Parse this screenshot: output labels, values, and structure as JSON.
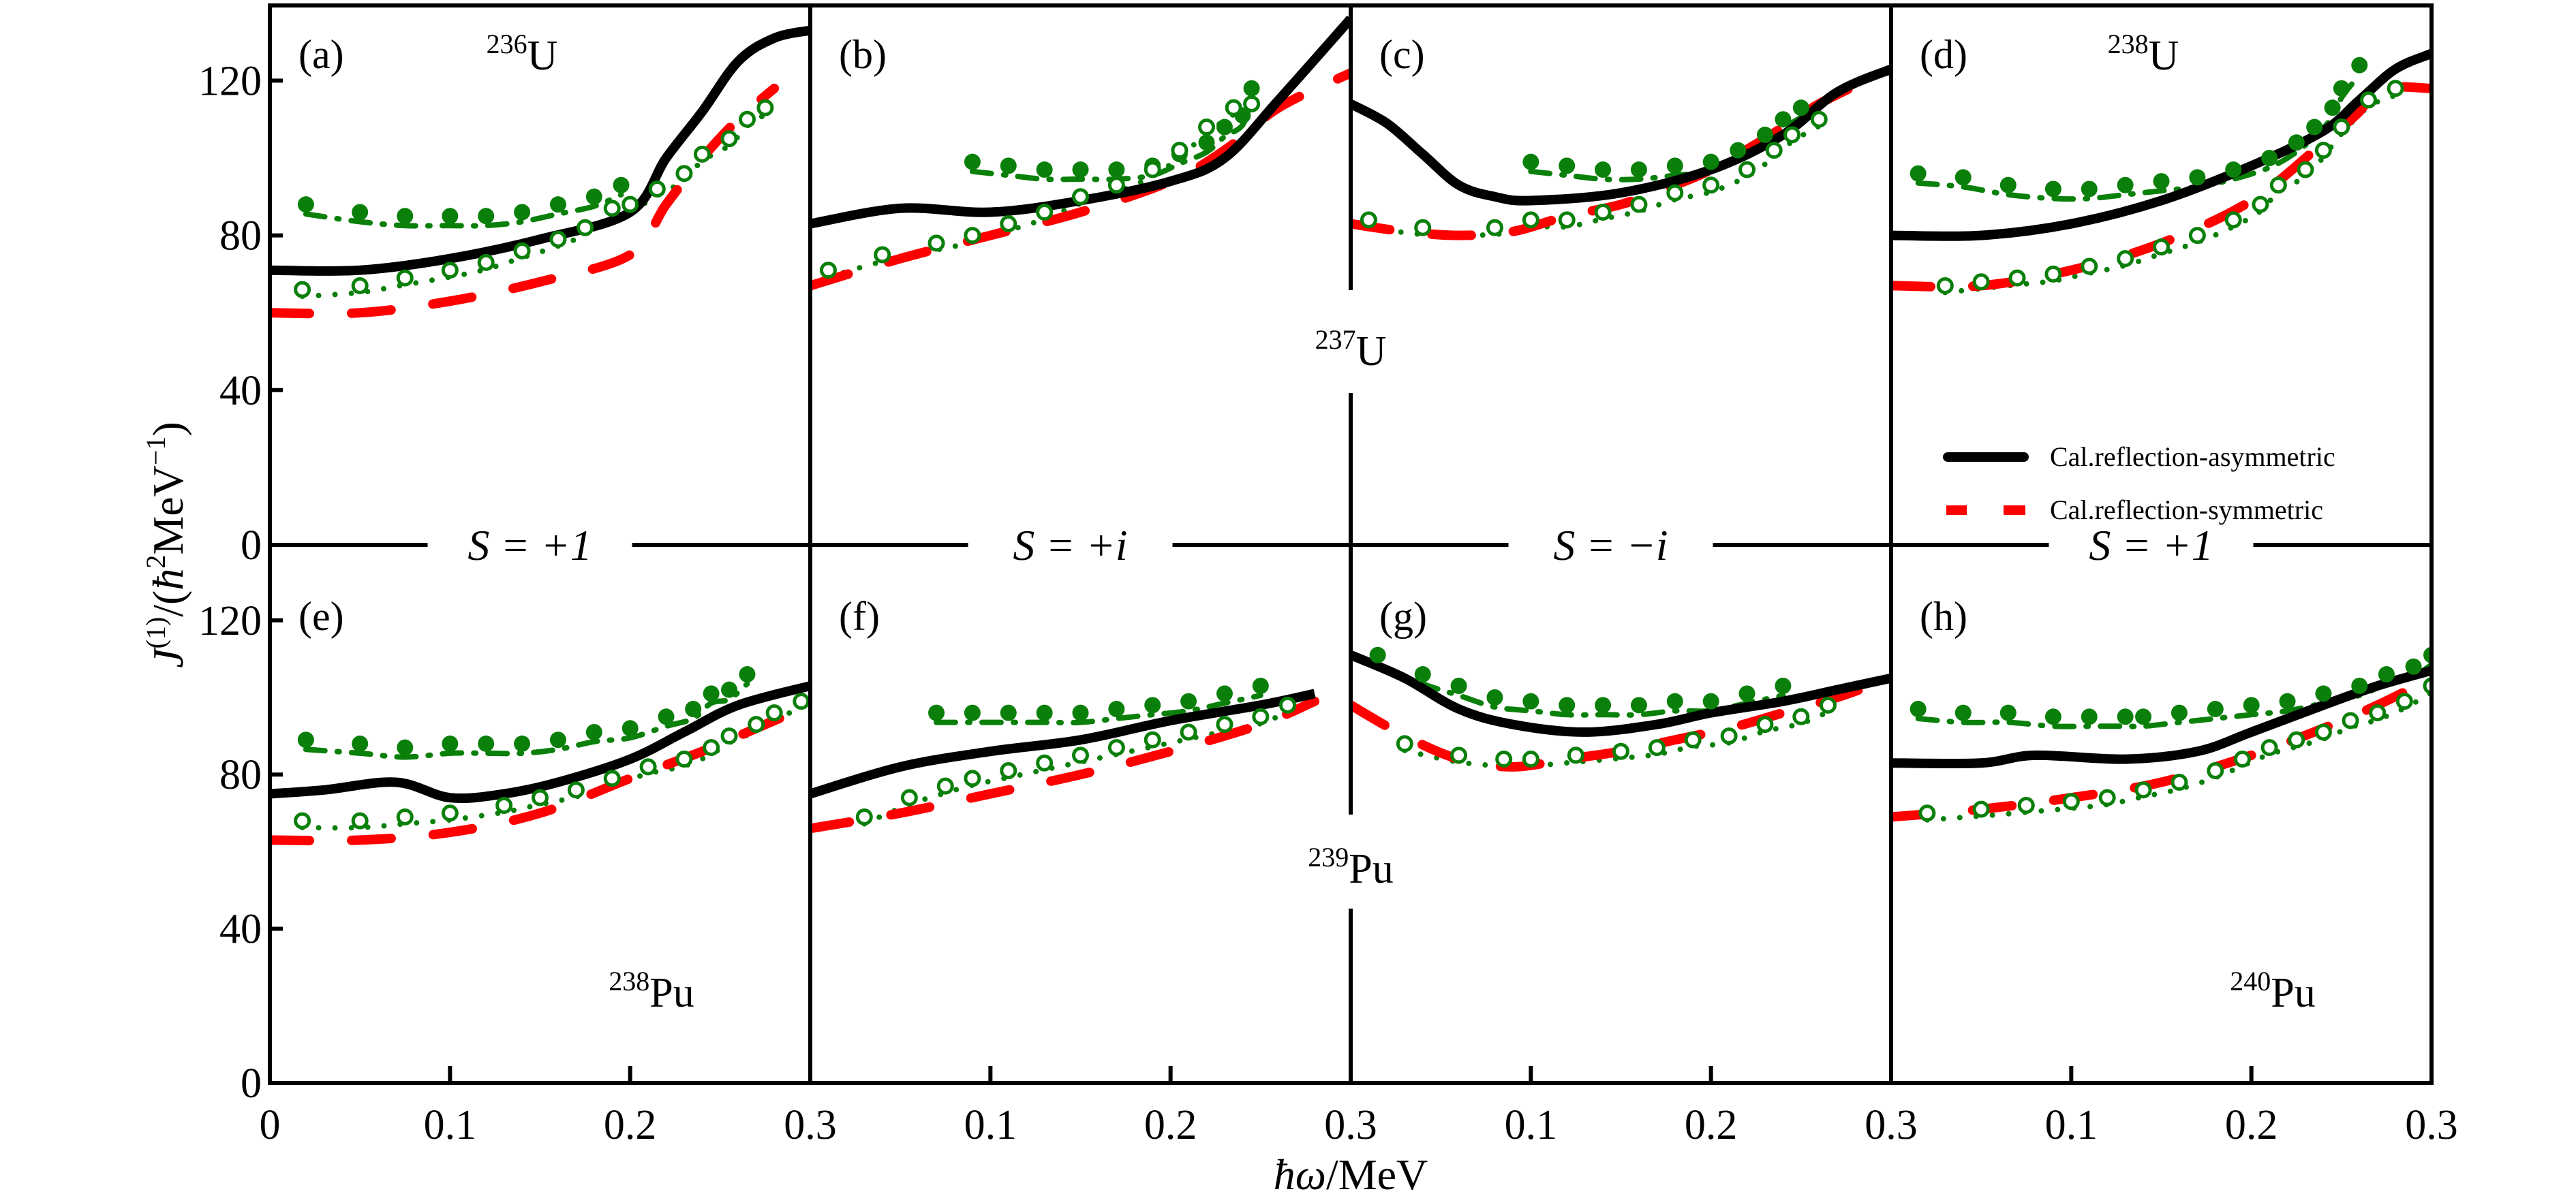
{
  "colors": {
    "asymmetric": "#000000",
    "symmetric": "#ff0000",
    "experiment": "#0a800a",
    "axis": "#000000"
  },
  "axes": {
    "xlabel": {
      "hbar_omega": "ħω",
      "unit": "/MeV"
    },
    "ylabel": {
      "J": "J",
      "order": "(1)",
      "open": "/(",
      "hbar": "ħ",
      "sq": "2",
      "unit": "MeV",
      "inv": "−1",
      "close": ")"
    },
    "y_tick_labels_top": [
      "0",
      "40",
      "80",
      "120"
    ],
    "y_tick_labels_bottom": [
      "0",
      "40",
      "80",
      "120"
    ],
    "x_tick_label_origin": "0",
    "x_tick_labels_panel": [
      "0.1",
      "0.2",
      "0.3"
    ]
  },
  "legend": {
    "placement": "right-middle of panel (d)",
    "items": [
      {
        "label": "Cal.reflection-asymmetric",
        "style": "solid-black"
      },
      {
        "label": "Cal.reflection-symmetric",
        "style": "dashed-red"
      }
    ]
  },
  "signatures": [
    "S = +1",
    "S = +i",
    "S = −i",
    "S = +1"
  ],
  "shared_nuclides": {
    "top": {
      "mass": "237",
      "symbol": "U"
    },
    "bottom": {
      "mass": "239",
      "symbol": "Pu"
    }
  },
  "chart_data": [
    {
      "type": "line",
      "panel": "(a)",
      "nuclide": {
        "mass": "236",
        "symbol": "U"
      },
      "xlim": [
        0,
        0.3
      ],
      "ylim": [
        0,
        140
      ],
      "yticks": [
        0,
        40,
        80,
        120
      ],
      "xticks": [
        0,
        0.1,
        0.2,
        0.3
      ],
      "xlabel": "ħω/MeV",
      "ylabel": "J(1)/(ħ2MeV−1)",
      "asymmetric": {
        "x": [
          0,
          0.05,
          0.1,
          0.15,
          0.2,
          0.22,
          0.24,
          0.26,
          0.28,
          0.3
        ],
        "y": [
          71,
          71,
          74,
          79,
          86,
          100,
          112,
          125,
          131,
          133
        ]
      },
      "symmetric": {
        "x": [
          0,
          0.05,
          0.1,
          0.15,
          0.2,
          0.22,
          0.24,
          0.26,
          0.28
        ],
        "y": [
          60,
          60,
          63,
          68,
          75,
          88,
          100,
          110,
          118
        ]
      },
      "exp_filled": {
        "x": [
          0.02,
          0.05,
          0.075,
          0.1,
          0.12,
          0.14,
          0.16,
          0.18,
          0.195
        ],
        "y": [
          88,
          86,
          85,
          85,
          85,
          86,
          88,
          90,
          93
        ]
      },
      "exp_open": {
        "x": [
          0.018,
          0.05,
          0.075,
          0.1,
          0.12,
          0.14,
          0.16,
          0.175,
          0.19,
          0.2,
          0.215,
          0.23,
          0.24,
          0.255,
          0.265,
          0.275
        ],
        "y": [
          66,
          67,
          69,
          71,
          73,
          76,
          79,
          82,
          87,
          88,
          92,
          96,
          101,
          105,
          110,
          113
        ]
      }
    },
    {
      "type": "line",
      "panel": "(b)",
      "nuclide": null,
      "xlim": [
        0,
        0.3
      ],
      "ylim": [
        0,
        140
      ],
      "asymmetric": {
        "x": [
          0,
          0.05,
          0.1,
          0.15,
          0.2,
          0.23,
          0.26,
          0.3
        ],
        "y": [
          83,
          87,
          86,
          89,
          94,
          100,
          115,
          136
        ]
      },
      "symmetric": {
        "x": [
          0,
          0.05,
          0.1,
          0.15,
          0.2,
          0.23,
          0.26,
          0.3
        ],
        "y": [
          67,
          74,
          80,
          86,
          94,
          102,
          113,
          122
        ]
      },
      "exp_filled": {
        "x": [
          0.09,
          0.11,
          0.13,
          0.15,
          0.17,
          0.19,
          0.205,
          0.22,
          0.23,
          0.24,
          0.245
        ],
        "y": [
          99,
          98,
          97,
          97,
          97,
          98,
          101,
          104,
          108,
          111,
          118
        ]
      },
      "exp_open": {
        "x": [
          0.01,
          0.04,
          0.07,
          0.09,
          0.11,
          0.13,
          0.15,
          0.17,
          0.19,
          0.205,
          0.22,
          0.235,
          0.245
        ],
        "y": [
          71,
          75,
          78,
          80,
          83,
          86,
          90,
          93,
          97,
          102,
          108,
          113,
          114
        ]
      }
    },
    {
      "type": "line",
      "panel": "(c)",
      "nuclide": null,
      "xlim": [
        0,
        0.3
      ],
      "ylim": [
        0,
        140
      ],
      "asymmetric": {
        "x": [
          0,
          0.02,
          0.04,
          0.06,
          0.08,
          0.1,
          0.15,
          0.2,
          0.24,
          0.27,
          0.3
        ],
        "y": [
          114,
          109,
          101,
          93,
          90,
          89,
          91,
          97,
          106,
          117,
          123
        ]
      },
      "symmetric": {
        "x": [
          0,
          0.03,
          0.06,
          0.09,
          0.12,
          0.15,
          0.18,
          0.2,
          0.23,
          0.26,
          0.3
        ],
        "y": [
          83,
          81,
          80,
          81,
          85,
          88,
          93,
          97,
          105,
          114,
          123
        ]
      },
      "exp_filled": {
        "x": [
          0.1,
          0.12,
          0.14,
          0.16,
          0.18,
          0.2,
          0.215,
          0.23,
          0.24,
          0.25
        ],
        "y": [
          99,
          98,
          97,
          97,
          98,
          99,
          102,
          106,
          110,
          113
        ]
      },
      "exp_open": {
        "x": [
          0.01,
          0.04,
          0.08,
          0.1,
          0.12,
          0.14,
          0.16,
          0.18,
          0.2,
          0.22,
          0.235,
          0.245,
          0.26
        ],
        "y": [
          84,
          82,
          82,
          84,
          84,
          86,
          88,
          91,
          93,
          97,
          102,
          106,
          110
        ]
      }
    },
    {
      "type": "line",
      "panel": "(d)",
      "nuclide": {
        "mass": "238",
        "symbol": "U"
      },
      "xlim": [
        0,
        0.3
      ],
      "ylim": [
        0,
        140
      ],
      "asymmetric": {
        "x": [
          0,
          0.05,
          0.1,
          0.15,
          0.2,
          0.24,
          0.26,
          0.28,
          0.3
        ],
        "y": [
          80,
          80,
          83,
          89,
          98,
          107,
          115,
          123,
          127
        ]
      },
      "symmetric": {
        "x": [
          0,
          0.05,
          0.1,
          0.15,
          0.2,
          0.24,
          0.26,
          0.27,
          0.3
        ],
        "y": [
          67,
          67,
          71,
          78,
          89,
          104,
          112,
          118,
          118
        ]
      },
      "exp_filled": {
        "x": [
          0.015,
          0.04,
          0.065,
          0.09,
          0.11,
          0.13,
          0.15,
          0.17,
          0.19,
          0.21,
          0.225,
          0.235,
          0.245,
          0.25,
          0.26
        ],
        "y": [
          96,
          95,
          93,
          92,
          92,
          93,
          94,
          95,
          97,
          100,
          104,
          108,
          113,
          118,
          124
        ]
      },
      "exp_open": {
        "x": [
          0.03,
          0.05,
          0.07,
          0.09,
          0.11,
          0.13,
          0.15,
          0.17,
          0.19,
          0.205,
          0.215,
          0.23,
          0.24,
          0.25,
          0.265,
          0.28
        ],
        "y": [
          67,
          68,
          69,
          70,
          72,
          74,
          77,
          80,
          84,
          88,
          93,
          97,
          102,
          108,
          115,
          118
        ]
      }
    },
    {
      "type": "line",
      "panel": "(e)",
      "nuclide": {
        "mass": "238",
        "symbol": "Pu"
      },
      "xlim": [
        0,
        0.3
      ],
      "ylim": [
        0,
        140
      ],
      "asymmetric": {
        "x": [
          0,
          0.03,
          0.07,
          0.1,
          0.13,
          0.16,
          0.2,
          0.23,
          0.26,
          0.3
        ],
        "y": [
          75,
          76,
          78,
          74,
          75,
          78,
          84,
          91,
          98,
          103
        ]
      },
      "symmetric": {
        "x": [
          0,
          0.05,
          0.1,
          0.15,
          0.2,
          0.24,
          0.27,
          0.3
        ],
        "y": [
          63,
          63,
          65,
          70,
          79,
          86,
          92,
          98
        ]
      },
      "exp_filled": {
        "x": [
          0.02,
          0.05,
          0.075,
          0.1,
          0.12,
          0.14,
          0.16,
          0.18,
          0.2,
          0.22,
          0.235,
          0.245,
          0.255,
          0.265
        ],
        "y": [
          89,
          88,
          87,
          88,
          88,
          88,
          89,
          91,
          92,
          95,
          97,
          101,
          102,
          106
        ]
      },
      "exp_open": {
        "x": [
          0.018,
          0.05,
          0.075,
          0.1,
          0.13,
          0.15,
          0.17,
          0.19,
          0.21,
          0.23,
          0.245,
          0.255,
          0.27,
          0.28,
          0.295
        ],
        "y": [
          68,
          68,
          69,
          70,
          72,
          74,
          76,
          79,
          82,
          84,
          87,
          90,
          93,
          96,
          99
        ]
      }
    },
    {
      "type": "line",
      "panel": "(f)",
      "nuclide": null,
      "xlim": [
        0,
        0.3
      ],
      "ylim": [
        0,
        140
      ],
      "asymmetric": {
        "x": [
          0,
          0.05,
          0.1,
          0.15,
          0.2,
          0.25,
          0.28
        ],
        "y": [
          75,
          82,
          86,
          89,
          94,
          98,
          101
        ]
      },
      "symmetric": {
        "x": [
          0,
          0.05,
          0.1,
          0.15,
          0.2,
          0.25,
          0.28
        ],
        "y": [
          66,
          70,
          75,
          80,
          86,
          93,
          99
        ]
      },
      "exp_filled": {
        "x": [
          0.07,
          0.09,
          0.11,
          0.13,
          0.15,
          0.17,
          0.19,
          0.21,
          0.23,
          0.25
        ],
        "y": [
          96,
          96,
          96,
          96,
          96,
          97,
          98,
          99,
          101,
          103
        ]
      },
      "exp_open": {
        "x": [
          0.03,
          0.055,
          0.075,
          0.09,
          0.11,
          0.13,
          0.15,
          0.17,
          0.19,
          0.21,
          0.23,
          0.25,
          0.265
        ],
        "y": [
          69,
          74,
          77,
          79,
          81,
          83,
          85,
          87,
          89,
          91,
          93,
          95,
          98
        ]
      }
    },
    {
      "type": "line",
      "panel": "(g)",
      "nuclide": null,
      "xlim": [
        0,
        0.3
      ],
      "ylim": [
        0,
        140
      ],
      "asymmetric": {
        "x": [
          0,
          0.03,
          0.06,
          0.09,
          0.13,
          0.17,
          0.2,
          0.24,
          0.27,
          0.3
        ],
        "y": [
          111,
          105,
          97,
          93,
          91,
          93,
          96,
          99,
          102,
          105
        ]
      },
      "symmetric": {
        "x": [
          0,
          0.03,
          0.06,
          0.09,
          0.12,
          0.15,
          0.18,
          0.21,
          0.24,
          0.27,
          0.3
        ],
        "y": [
          98,
          90,
          84,
          82,
          84,
          86,
          89,
          92,
          96,
          100,
          105
        ]
      },
      "exp_filled": {
        "x": [
          0.015,
          0.04,
          0.06,
          0.08,
          0.1,
          0.12,
          0.14,
          0.16,
          0.18,
          0.2,
          0.22,
          0.24
        ],
        "y": [
          111,
          106,
          103,
          100,
          99,
          98,
          98,
          98,
          99,
          99,
          101,
          103
        ]
      },
      "exp_open": {
        "x": [
          0.03,
          0.06,
          0.085,
          0.1,
          0.125,
          0.15,
          0.17,
          0.19,
          0.21,
          0.23,
          0.25,
          0.265
        ],
        "y": [
          88,
          85,
          84,
          84,
          85,
          86,
          87,
          89,
          90,
          93,
          95,
          98
        ]
      }
    },
    {
      "type": "line",
      "panel": "(h)",
      "nuclide": {
        "mass": "240",
        "symbol": "Pu"
      },
      "xlim": [
        0,
        0.3
      ],
      "ylim": [
        0,
        140
      ],
      "asymmetric": {
        "x": [
          0,
          0.05,
          0.08,
          0.13,
          0.17,
          0.2,
          0.24,
          0.27,
          0.3
        ],
        "y": [
          83,
          83,
          85,
          84,
          86,
          91,
          98,
          103,
          107
        ]
      },
      "symmetric": {
        "x": [
          0,
          0.05,
          0.1,
          0.15,
          0.2,
          0.24,
          0.27,
          0.3
        ],
        "y": [
          69,
          71,
          74,
          78,
          85,
          92,
          98,
          105
        ]
      },
      "exp_filled": {
        "x": [
          0.015,
          0.04,
          0.065,
          0.09,
          0.11,
          0.13,
          0.14,
          0.16,
          0.18,
          0.2,
          0.22,
          0.24,
          0.26,
          0.275,
          0.29,
          0.3
        ],
        "y": [
          97,
          96,
          96,
          95,
          95,
          95,
          95,
          96,
          97,
          98,
          99,
          101,
          103,
          106,
          108,
          111
        ]
      },
      "exp_open": {
        "x": [
          0.02,
          0.05,
          0.075,
          0.1,
          0.12,
          0.14,
          0.16,
          0.18,
          0.195,
          0.21,
          0.225,
          0.24,
          0.255,
          0.27,
          0.285,
          0.3
        ],
        "y": [
          70,
          71,
          72,
          73,
          74,
          76,
          78,
          81,
          84,
          87,
          89,
          91,
          94,
          96,
          99,
          103
        ]
      }
    }
  ]
}
